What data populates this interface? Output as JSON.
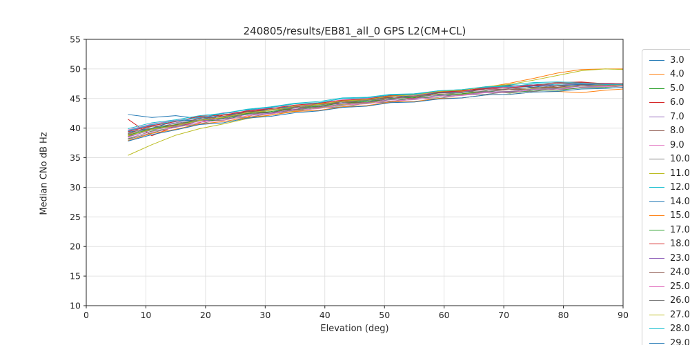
{
  "title": "240805/results/EB81_all_0 GPS L2(CM+CL)",
  "chart_data": {
    "type": "line",
    "title": "240805/results/EB81_all_0 GPS L2(CM+CL)",
    "xlabel": "Elevation (deg)",
    "ylabel": "Median CNo dB Hz",
    "xlim": [
      0,
      90
    ],
    "ylim": [
      10,
      55
    ],
    "xticks": [
      0,
      10,
      20,
      30,
      40,
      50,
      60,
      70,
      80,
      90
    ],
    "yticks": [
      10,
      15,
      20,
      25,
      30,
      35,
      40,
      45,
      50,
      55
    ],
    "grid": true,
    "legend_position": "right-outside",
    "x": [
      7,
      11,
      15,
      19,
      23,
      27,
      31,
      35,
      39,
      43,
      47,
      51,
      55,
      59,
      63,
      67,
      71,
      75,
      79,
      83,
      87,
      90
    ],
    "series": [
      {
        "name": "3.0",
        "color": "#1f77b4",
        "values": [
          42.3,
          41.8,
          42.1,
          41.6,
          42.5,
          42.8,
          42.6,
          43.7,
          44.1,
          44.3,
          44.7,
          45.2,
          45.5,
          46.0,
          46.2,
          46.8,
          47.2,
          46.9,
          47.5,
          47.6,
          47.4,
          47.4
        ]
      },
      {
        "name": "4.0",
        "color": "#ff7f0e",
        "values": [
          38.9,
          39.7,
          40.4,
          41.2,
          42.2,
          41.9,
          43.2,
          43.0,
          44.1,
          44.5,
          44.3,
          45.2,
          45.3,
          45.9,
          46.2,
          46.9,
          47.6,
          48.4,
          49.3,
          49.9,
          50.0,
          50.0
        ]
      },
      {
        "name": "5.0",
        "color": "#2ca02c",
        "values": [
          38.2,
          39.5,
          40.1,
          41.3,
          41.3,
          42.4,
          42.4,
          43.1,
          43.5,
          43.8,
          44.6,
          44.5,
          45.1,
          45.2,
          45.8,
          46.0,
          46.1,
          46.7,
          46.4,
          46.9,
          47.0,
          47.2
        ]
      },
      {
        "name": "6.0",
        "color": "#d62728",
        "values": [
          41.5,
          38.7,
          40.4,
          40.9,
          42.2,
          42.6,
          43.4,
          43.1,
          44.3,
          44.0,
          44.9,
          45.3,
          45.0,
          46.0,
          46.3,
          46.8,
          47.1,
          47.3,
          47.7,
          47.8,
          47.5,
          47.4
        ]
      },
      {
        "name": "7.0",
        "color": "#9467bd",
        "values": [
          39.5,
          40.5,
          40.9,
          41.9,
          41.9,
          43.0,
          43.4,
          43.5,
          44.3,
          44.7,
          45.0,
          45.1,
          45.8,
          46.1,
          46.1,
          46.8,
          46.9,
          47.3,
          47.2,
          47.5,
          47.6,
          47.5
        ]
      },
      {
        "name": "8.0",
        "color": "#8c564b",
        "values": [
          38.6,
          40.0,
          40.4,
          41.4,
          41.5,
          42.5,
          42.6,
          43.4,
          43.6,
          44.3,
          44.3,
          45.0,
          45.2,
          45.7,
          45.8,
          46.2,
          46.5,
          46.6,
          47.1,
          47.1,
          47.3,
          47.3
        ]
      },
      {
        "name": "9.0",
        "color": "#e377c2",
        "values": [
          39.7,
          40.7,
          41.3,
          41.7,
          42.6,
          42.7,
          43.6,
          43.8,
          44.2,
          44.8,
          45.0,
          45.6,
          45.5,
          46.1,
          46.4,
          46.4,
          47.0,
          47.1,
          47.5,
          47.3,
          47.6,
          47.5
        ]
      },
      {
        "name": "10.0",
        "color": "#7f7f7f",
        "values": [
          38.1,
          39.2,
          40.2,
          40.7,
          41.6,
          41.8,
          42.5,
          42.8,
          43.4,
          43.6,
          44.2,
          44.4,
          44.9,
          45.0,
          45.6,
          45.7,
          46.2,
          46.2,
          46.7,
          46.8,
          47.0,
          47.1
        ]
      },
      {
        "name": "11.0",
        "color": "#bcbd22",
        "values": [
          35.4,
          37.2,
          38.8,
          39.9,
          40.7,
          41.6,
          42.2,
          42.9,
          43.4,
          44.0,
          44.2,
          44.8,
          45.0,
          45.5,
          45.7,
          46.1,
          46.2,
          46.7,
          46.8,
          47.1,
          47.2,
          47.3
        ]
      },
      {
        "name": "12.0",
        "color": "#17becf",
        "values": [
          39.9,
          40.9,
          41.4,
          42.1,
          42.5,
          43.2,
          43.6,
          44.2,
          44.5,
          45.1,
          45.2,
          45.7,
          45.8,
          46.3,
          46.5,
          46.9,
          47.3,
          47.7,
          47.8,
          47.7,
          47.5,
          47.5
        ]
      },
      {
        "name": "14.0",
        "color": "#1f77b4",
        "values": [
          39.3,
          40.0,
          41.2,
          41.4,
          42.3,
          42.5,
          43.3,
          43.7,
          43.9,
          44.6,
          44.8,
          45.2,
          45.4,
          46.0,
          46.0,
          46.7,
          46.8,
          47.1,
          47.2,
          47.4,
          47.3,
          47.4
        ]
      },
      {
        "name": "15.0",
        "color": "#ff7f0e",
        "values": [
          37.9,
          39.1,
          39.8,
          40.7,
          41.1,
          41.8,
          42.2,
          42.8,
          43.0,
          43.6,
          43.8,
          44.4,
          44.5,
          45.0,
          45.1,
          45.6,
          45.7,
          46.1,
          46.2,
          46.0,
          46.4,
          46.6
        ]
      },
      {
        "name": "17.0",
        "color": "#2ca02c",
        "values": [
          38.8,
          39.9,
          40.6,
          41.4,
          41.7,
          42.5,
          42.8,
          43.4,
          43.7,
          44.3,
          44.5,
          45.0,
          45.2,
          45.7,
          45.8,
          46.3,
          45.9,
          46.4,
          46.4,
          46.8,
          46.9,
          47.1
        ]
      },
      {
        "name": "18.0",
        "color": "#d62728",
        "values": [
          39.4,
          40.4,
          41.1,
          42.0,
          42.2,
          42.9,
          43.3,
          43.9,
          44.2,
          44.7,
          44.9,
          45.5,
          45.7,
          46.1,
          46.3,
          46.7,
          46.8,
          47.2,
          47.5,
          47.7,
          47.5,
          47.5
        ]
      },
      {
        "name": "23.0",
        "color": "#9467bd",
        "values": [
          38.5,
          39.7,
          40.3,
          41.2,
          41.6,
          42.3,
          42.5,
          43.2,
          43.5,
          44.1,
          44.3,
          44.8,
          45.0,
          45.5,
          45.6,
          46.1,
          46.2,
          46.6,
          46.7,
          47.1,
          47.0,
          47.2
        ]
      },
      {
        "name": "24.0",
        "color": "#8c564b",
        "values": [
          39.1,
          40.3,
          40.5,
          41.7,
          41.9,
          42.8,
          43.0,
          43.6,
          43.9,
          44.5,
          44.7,
          45.2,
          45.4,
          45.9,
          46.0,
          46.6,
          46.5,
          46.9,
          46.9,
          47.3,
          47.2,
          47.4
        ]
      },
      {
        "name": "25.0",
        "color": "#e377c2",
        "values": [
          38.3,
          39.4,
          40.1,
          41.0,
          41.3,
          42.1,
          42.4,
          43.0,
          43.3,
          43.9,
          44.1,
          44.6,
          44.8,
          45.3,
          45.5,
          46.0,
          46.0,
          46.5,
          46.5,
          46.9,
          47.0,
          47.1
        ]
      },
      {
        "name": "26.0",
        "color": "#7f7f7f",
        "values": [
          39.0,
          40.0,
          40.8,
          41.4,
          42.0,
          42.3,
          43.1,
          43.4,
          43.9,
          44.3,
          44.7,
          44.9,
          45.4,
          45.6,
          46.1,
          46.2,
          46.7,
          46.8,
          47.2,
          47.1,
          47.4,
          47.4
        ]
      },
      {
        "name": "27.0",
        "color": "#bcbd22",
        "values": [
          38.7,
          39.8,
          40.4,
          41.3,
          41.8,
          42.6,
          43.0,
          43.7,
          44.0,
          44.6,
          44.8,
          45.4,
          45.6,
          46.2,
          46.4,
          47.0,
          47.4,
          48.1,
          48.9,
          49.7,
          50.0,
          49.9
        ]
      },
      {
        "name": "28.0",
        "color": "#17becf",
        "values": [
          39.6,
          40.6,
          41.2,
          41.8,
          42.5,
          43.1,
          43.5,
          44.1,
          44.3,
          45.0,
          45.1,
          45.6,
          45.7,
          46.3,
          46.5,
          47.0,
          47.0,
          47.5,
          47.4,
          47.6,
          47.4,
          47.4
        ]
      },
      {
        "name": "29.0",
        "color": "#1f77b4",
        "values": [
          37.8,
          38.9,
          39.7,
          40.6,
          40.9,
          41.7,
          42.0,
          42.6,
          42.9,
          43.5,
          43.7,
          44.3,
          44.4,
          44.9,
          45.1,
          45.6,
          45.7,
          46.1,
          46.2,
          46.6,
          46.7,
          46.9
        ]
      }
    ]
  }
}
